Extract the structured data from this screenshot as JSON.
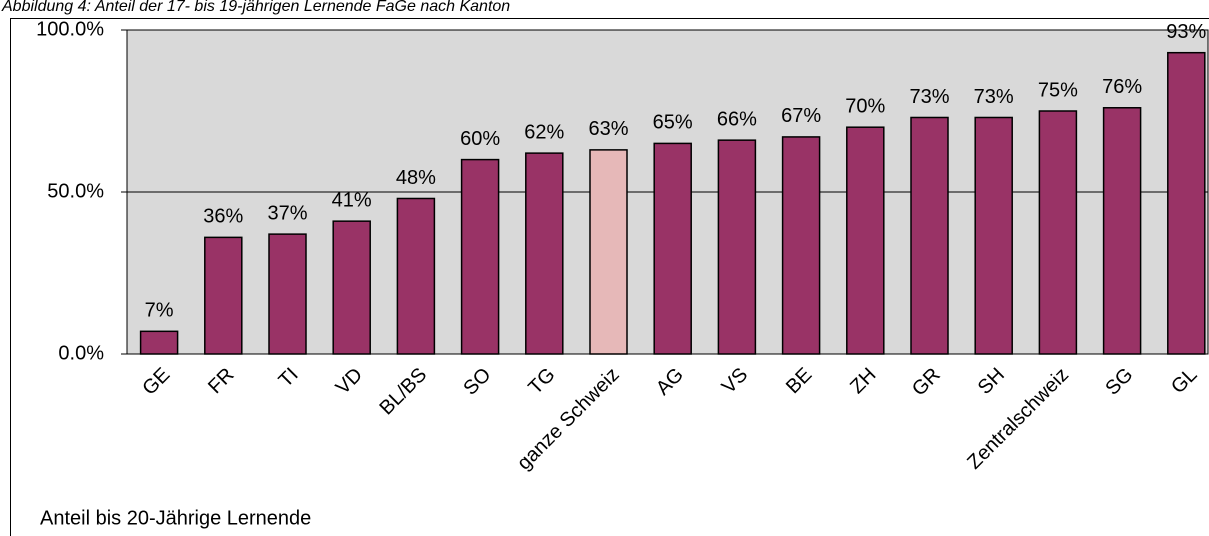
{
  "chart_data": {
    "type": "bar",
    "title": "Abbildung 4: Anteil der 17- bis 19-jährigen Lernende FaGe nach Kanton",
    "categories": [
      "GE",
      "FR",
      "TI",
      "VD",
      "BL/BS",
      "SO",
      "TG",
      "ganze Schweiz",
      "AG",
      "VS",
      "BE",
      "ZH",
      "GR",
      "SH",
      "Zentralschweiz",
      "SG",
      "GL"
    ],
    "series": [
      {
        "name": "Anteil bis 20-Jährige Lernende",
        "color": "#993366",
        "values": [
          7,
          36,
          37,
          41,
          48,
          60,
          62,
          63,
          65,
          66,
          67,
          70,
          73,
          73,
          75,
          76,
          93
        ],
        "value_labels": [
          "7%",
          "36%",
          "37%",
          "41%",
          "48%",
          "60%",
          "62%",
          "63%",
          "65%",
          "66%",
          "67%",
          "70%",
          "73%",
          "73%",
          "75%",
          "76%",
          "93%"
        ],
        "colors": [
          "#993366",
          "#993366",
          "#993366",
          "#993366",
          "#993366",
          "#993366",
          "#993366",
          "#e6b8b8",
          "#993366",
          "#993366",
          "#993366",
          "#993366",
          "#993366",
          "#993366",
          "#993366",
          "#993366",
          "#993366"
        ]
      }
    ],
    "ylim": [
      0,
      100
    ],
    "yticks": [
      {
        "value": 0,
        "label": "0.0%"
      },
      {
        "value": 50,
        "label": "50.0%"
      },
      {
        "value": 100,
        "label": "100.0%"
      }
    ],
    "grid": true,
    "legend": "bottom-left"
  }
}
